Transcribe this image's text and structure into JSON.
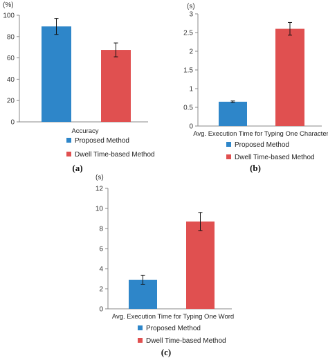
{
  "colors": {
    "proposed": "#2e86c9",
    "dwell": "#e05050"
  },
  "chart_data": [
    {
      "type": "bar",
      "panel": "(a)",
      "unit": "(%)",
      "xlabel": "Accuracy",
      "ylim": [
        0,
        100
      ],
      "yticks": [
        "0",
        "20",
        "40",
        "60",
        "80",
        "100"
      ],
      "series": [
        {
          "name": "Proposed Method",
          "value": 89.5,
          "error": 7.5
        },
        {
          "name": "Dwell Time-based Method",
          "value": 67.5,
          "error": 6.5
        }
      ]
    },
    {
      "type": "bar",
      "panel": "(b)",
      "unit": "(s)",
      "xlabel": "Avg. Execution Time for Typing One Character",
      "ylim": [
        0,
        3
      ],
      "yticks": [
        "0",
        "0.5",
        "1",
        "1.5",
        "2",
        "2.5",
        "3"
      ],
      "series": [
        {
          "name": "Proposed Method",
          "value": 0.65,
          "error": 0.02
        },
        {
          "name": "Dwell Time-based Method",
          "value": 2.6,
          "error": 0.17
        }
      ]
    },
    {
      "type": "bar",
      "panel": "(c)",
      "unit": "(s)",
      "xlabel": "Avg. Execution Time for Typing One Word",
      "ylim": [
        0,
        12
      ],
      "yticks": [
        "0",
        "2",
        "4",
        "6",
        "8",
        "10",
        "12"
      ],
      "series": [
        {
          "name": "Proposed Method",
          "value": 2.9,
          "error": 0.45
        },
        {
          "name": "Dwell Time-based Method",
          "value": 8.7,
          "error": 0.9
        }
      ]
    }
  ]
}
